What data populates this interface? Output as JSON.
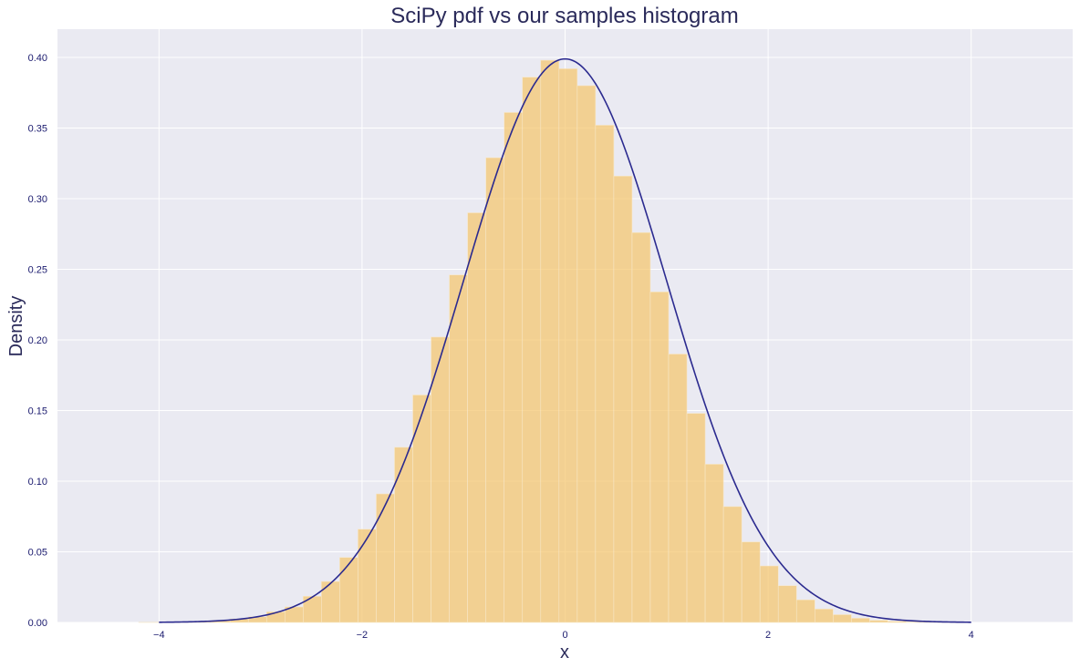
{
  "chart_data": {
    "type": "bar",
    "title": "SciPy pdf vs our samples histogram",
    "xlabel": "x",
    "ylabel": "Density",
    "xlim": [
      -5.0,
      5.0
    ],
    "ylim": [
      0,
      0.42
    ],
    "x_ticks": [
      -4,
      -2,
      0,
      2,
      4
    ],
    "x_tick_labels": [
      "−4",
      "−2",
      "0",
      "2",
      "4"
    ],
    "y_ticks": [
      0.0,
      0.05,
      0.1,
      0.15,
      0.2,
      0.25,
      0.3,
      0.35,
      0.4
    ],
    "y_tick_labels": [
      "0.00",
      "0.05",
      "0.10",
      "0.15",
      "0.20",
      "0.25",
      "0.30",
      "0.35",
      "0.40"
    ],
    "grid": true,
    "series": [
      {
        "kind": "histogram",
        "bin_edges": [
          -4.2,
          -4.02,
          -3.84,
          -3.66,
          -3.48,
          -3.3,
          -3.12,
          -2.94,
          -2.76,
          -2.58,
          -2.4,
          -2.22,
          -2.04,
          -1.86,
          -1.68,
          -1.5,
          -1.32,
          -1.14,
          -0.96,
          -0.78,
          -0.6,
          -0.42,
          -0.24,
          -0.06,
          0.12,
          0.3,
          0.48,
          0.66,
          0.84,
          1.02,
          1.2,
          1.38,
          1.56,
          1.74,
          1.92,
          2.1,
          2.28,
          2.46,
          2.64,
          2.82,
          3.0,
          3.18,
          3.36,
          3.54,
          3.72,
          3.9
        ],
        "values": [
          0.0001,
          0.0002,
          0.0004,
          0.0008,
          0.0014,
          0.0025,
          0.004,
          0.0075,
          0.011,
          0.0185,
          0.029,
          0.046,
          0.066,
          0.091,
          0.124,
          0.161,
          0.202,
          0.246,
          0.29,
          0.329,
          0.361,
          0.386,
          0.398,
          0.392,
          0.38,
          0.352,
          0.316,
          0.276,
          0.234,
          0.19,
          0.148,
          0.112,
          0.082,
          0.057,
          0.04,
          0.026,
          0.016,
          0.0095,
          0.0055,
          0.003,
          0.0015,
          0.0008,
          0.0004,
          0.0002,
          0.0001
        ],
        "color": "#f5c46a"
      },
      {
        "kind": "line",
        "function": "normal_pdf",
        "mu": 0,
        "sigma": 1,
        "x_range": [
          -4,
          4
        ],
        "color": "#2b2a8f"
      }
    ],
    "colors": {
      "plot_background": "#eaeaf2",
      "grid": "#ffffff",
      "bar_fill": "#f5c46a",
      "line": "#2b2a8f"
    }
  }
}
